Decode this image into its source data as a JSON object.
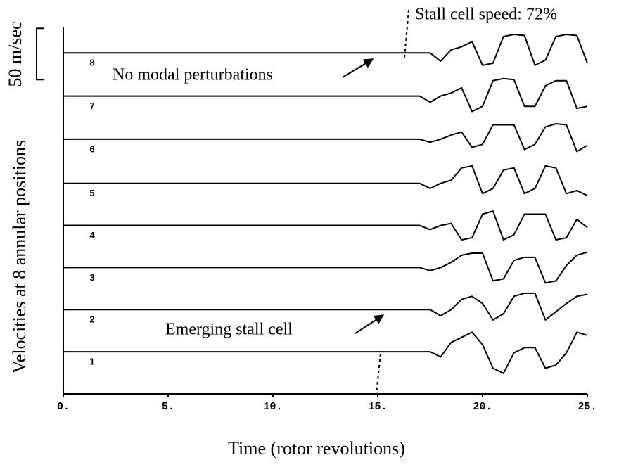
{
  "chart_data": {
    "type": "line",
    "x_label": "Time (rotor revolutions)",
    "y_label": "Velocities at 8 annular positions",
    "scale_bar": {
      "label": "50 m/sec",
      "range": [
        306,
        356
      ]
    },
    "annotations": [
      "Stall cell speed: 72%",
      "No modal perturbations",
      "Emerging stall cell"
    ],
    "xlim": [
      0,
      25
    ],
    "xticks": [
      {
        "value": 0,
        "label": "0."
      },
      {
        "value": 5,
        "label": "5."
      },
      {
        "value": 10,
        "label": "10."
      },
      {
        "value": 15,
        "label": "15."
      },
      {
        "value": 20,
        "label": "20."
      },
      {
        "value": 25,
        "label": "25."
      }
    ],
    "ylim": [
      0,
      360
    ],
    "x": [
      0,
      15,
      15.5,
      16,
      16.5,
      17,
      17.5,
      18,
      18.5,
      19,
      19.5,
      20,
      20.5,
      21,
      21.5,
      22,
      22.5,
      23,
      23.5,
      24,
      24.5,
      25
    ],
    "series": [
      {
        "name": "1",
        "color": "#000000",
        "values": [
          41,
          41,
          41,
          41,
          41,
          41,
          41,
          36,
          50,
          55,
          60,
          48,
          25,
          20,
          40,
          45,
          45,
          25,
          28,
          40,
          60,
          57
        ]
      },
      {
        "name": "2",
        "color": "#000000",
        "values": [
          82,
          82,
          82,
          82,
          82,
          82,
          82,
          76,
          82,
          92,
          95,
          88,
          72,
          78,
          95,
          98,
          98,
          72,
          80,
          88,
          95,
          97
        ]
      },
      {
        "name": "3",
        "color": "#000000",
        "values": [
          123,
          123,
          123,
          123,
          123,
          123,
          120,
          123,
          128,
          135,
          137,
          137,
          110,
          112,
          130,
          133,
          133,
          108,
          110,
          125,
          135,
          138
        ]
      },
      {
        "name": "4",
        "color": "#000000",
        "values": [
          164,
          164,
          164,
          164,
          164,
          164,
          160,
          164,
          166,
          150,
          152,
          175,
          178,
          150,
          155,
          175,
          175,
          175,
          150,
          152,
          170,
          162
        ]
      },
      {
        "name": "5",
        "color": "#000000",
        "values": [
          205,
          205,
          205,
          205,
          205,
          205,
          200,
          205,
          208,
          220,
          222,
          195,
          200,
          218,
          220,
          195,
          200,
          222,
          220,
          195,
          198,
          193
        ]
      },
      {
        "name": "6",
        "color": "#000000",
        "values": [
          248,
          248,
          248,
          248,
          248,
          248,
          245,
          248,
          252,
          255,
          240,
          243,
          262,
          262,
          262,
          238,
          243,
          260,
          263,
          262,
          236,
          242
        ]
      },
      {
        "name": "7",
        "color": "#000000",
        "values": [
          290,
          290,
          290,
          290,
          290,
          290,
          284,
          290,
          293,
          298,
          275,
          280,
          305,
          307,
          306,
          280,
          280,
          300,
          305,
          305,
          278,
          280
        ]
      },
      {
        "name": "8",
        "color": "#000000",
        "values": [
          332,
          332,
          332,
          332,
          332,
          332,
          332,
          324,
          335,
          338,
          343,
          320,
          322,
          348,
          350,
          349,
          320,
          325,
          348,
          350,
          349,
          322
        ]
      }
    ]
  }
}
